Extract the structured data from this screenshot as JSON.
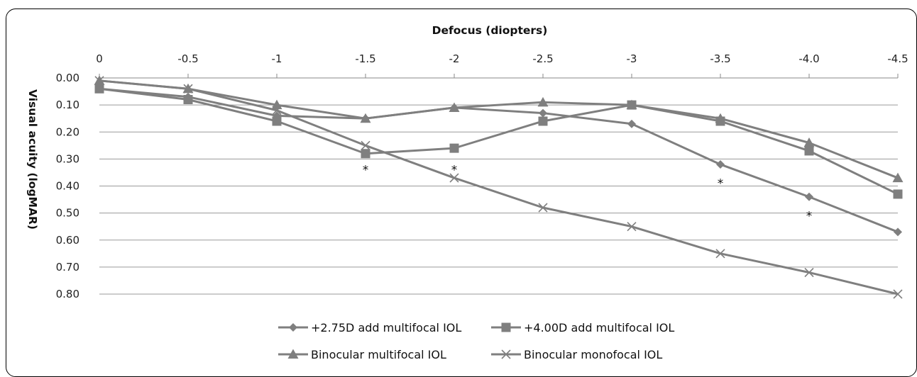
{
  "chart_data": {
    "type": "line",
    "xlabel": "Defocus (diopters)",
    "ylabel": "Visual acuity (logMAR)",
    "x": [
      0,
      -0.5,
      -1,
      -1.5,
      -2,
      -2.5,
      -3,
      -3.5,
      -4.0,
      -4.5
    ],
    "x_tick_labels": [
      "0",
      "-0.5",
      "-1",
      "-1.5",
      "-2",
      "-2.5",
      "-3",
      "-3.5",
      "-4.0",
      "-4.5"
    ],
    "ylim": [
      0,
      0.8
    ],
    "y_inverted": true,
    "y_tick_labels": [
      "0.00",
      "0.10",
      "0.20",
      "0.30",
      "0.40",
      "0.50",
      "0.60",
      "0.70",
      "0.80"
    ],
    "grid": "horizontal",
    "legend_position": "bottom",
    "color": "#7f7f7f",
    "series": [
      {
        "name": "+2.75D add multifocal IOL",
        "marker": "diamond",
        "values": [
          0.04,
          0.07,
          0.14,
          0.15,
          0.11,
          0.13,
          0.17,
          0.32,
          0.44,
          0.57
        ]
      },
      {
        "name": "+4.00D add multifocal IOL",
        "marker": "square",
        "values": [
          0.04,
          0.08,
          0.16,
          0.28,
          0.26,
          0.16,
          0.1,
          0.16,
          0.27,
          0.43
        ]
      },
      {
        "name": "Binocular multifocal IOL",
        "marker": "triangle",
        "values": [
          0.01,
          0.04,
          0.1,
          0.15,
          0.11,
          0.09,
          0.1,
          0.15,
          0.24,
          0.37
        ]
      },
      {
        "name": "Binocular monofocal IOL",
        "marker": "x",
        "values": [
          0.01,
          0.04,
          0.12,
          0.25,
          0.37,
          0.48,
          0.55,
          0.65,
          0.72,
          0.8
        ]
      }
    ],
    "annotations": [
      {
        "text": "*",
        "x": -1.5,
        "y": 0.34
      },
      {
        "text": "*",
        "x": -2,
        "y": 0.34
      },
      {
        "text": "*",
        "x": -3.5,
        "y": 0.39
      },
      {
        "text": "*",
        "x": -4.0,
        "y": 0.51
      }
    ]
  }
}
